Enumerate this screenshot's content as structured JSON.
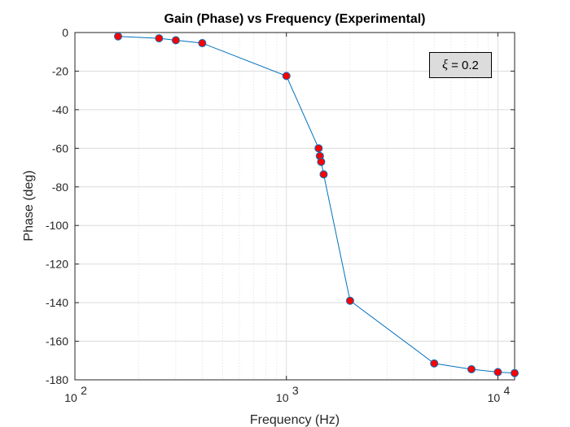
{
  "chart_data": {
    "type": "line",
    "title": "Gain (Phase) vs Frequency (Experimental)",
    "xlabel": "Frequency (Hz)",
    "ylabel": "Phase (deg)",
    "xscale": "log",
    "xlim": [
      100,
      12000
    ],
    "ylim": [
      -180,
      0
    ],
    "x_ticks": [
      100,
      1000,
      10000
    ],
    "x_tick_labels": [
      {
        "base": "10",
        "exp": "2"
      },
      {
        "base": "10",
        "exp": "3"
      },
      {
        "base": "10",
        "exp": "4"
      }
    ],
    "y_ticks": [
      0,
      -20,
      -40,
      -60,
      -80,
      -100,
      -120,
      -140,
      -160,
      -180
    ],
    "y_tick_labels": [
      "0",
      "-20",
      "-40",
      "-60",
      "-80",
      "-100",
      "-120",
      "-140",
      "-160",
      "-180"
    ],
    "grid": true,
    "colors": {
      "line": "#0072bd",
      "marker_fill": "#ff0000",
      "marker_edge": "#0072bd"
    },
    "annotation": {
      "symbol": "ξ",
      "text": " = 0.2"
    },
    "series": [
      {
        "x": [
          160,
          250,
          300,
          400,
          1000,
          1420,
          1440,
          1460,
          1500,
          2000,
          5000,
          7500,
          10000,
          12000
        ],
        "y": [
          -2,
          -3,
          -4,
          -5.5,
          -22.5,
          -60,
          -64,
          -67,
          -73.5,
          -139,
          -171.5,
          -174.5,
          -176,
          -176.5
        ]
      }
    ]
  }
}
